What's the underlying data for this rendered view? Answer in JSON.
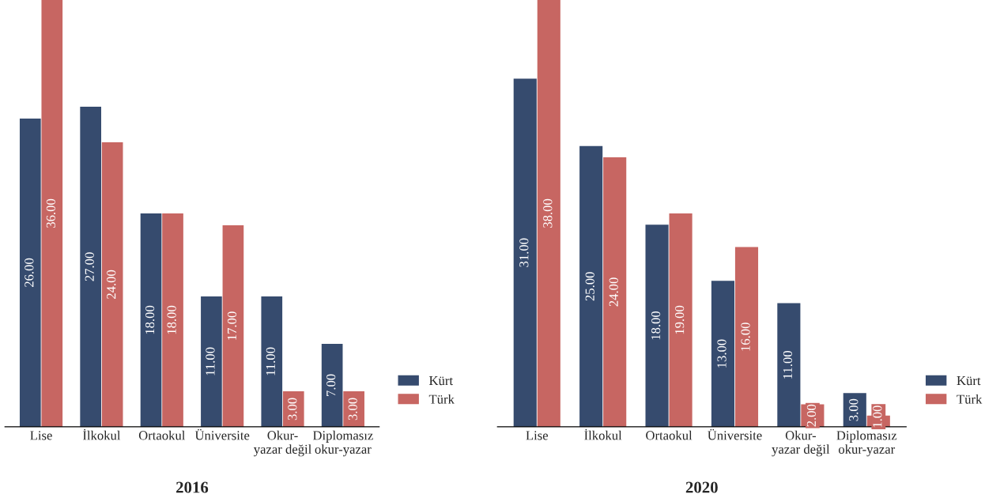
{
  "chart_data": [
    {
      "type": "bar",
      "title": "2016",
      "categories": [
        "Lise",
        "İlkokul",
        "Ortaokul",
        "Üniversite",
        "Okur-\nyazar değil",
        "Diplomasız\nokur-yazar"
      ],
      "series": [
        {
          "name": "Kürt",
          "color": "#364b6e",
          "values": [
            26,
            27,
            18,
            11,
            11,
            7
          ],
          "value_labels": [
            "26.00",
            "27.00",
            "18.00",
            "11.00",
            "11.00",
            "7.00"
          ]
        },
        {
          "name": "Türk",
          "color": "#c76662",
          "values": [
            36,
            24,
            18,
            17,
            3,
            3
          ],
          "value_labels": [
            "36.00",
            "24.00",
            "18.00",
            "17.00",
            "3.00",
            "3.00"
          ]
        }
      ],
      "legend": "bottom right",
      "tick_labels": "x"
    },
    {
      "type": "bar",
      "title": "2020",
      "categories": [
        "Lise",
        "İlkokul",
        "Ortaokul",
        "Üniversite",
        "Okur-\nyazar değil",
        "Diplomasız\nokur-yazar"
      ],
      "series": [
        {
          "name": "Kürt",
          "color": "#364b6e",
          "values": [
            31,
            25,
            18,
            13,
            11,
            3
          ],
          "value_labels": [
            "31.00",
            "25.00",
            "18.00",
            "13.00",
            "11.00",
            "3.00"
          ]
        },
        {
          "name": "Türk",
          "color": "#c76662",
          "values": [
            38,
            24,
            19,
            16,
            2,
            1
          ],
          "value_labels": [
            "38.00",
            "24.00",
            "19.00",
            "16.00",
            "2.00",
            "1.00"
          ]
        }
      ],
      "legend": "bottom right",
      "tick_labels": "x"
    }
  ]
}
